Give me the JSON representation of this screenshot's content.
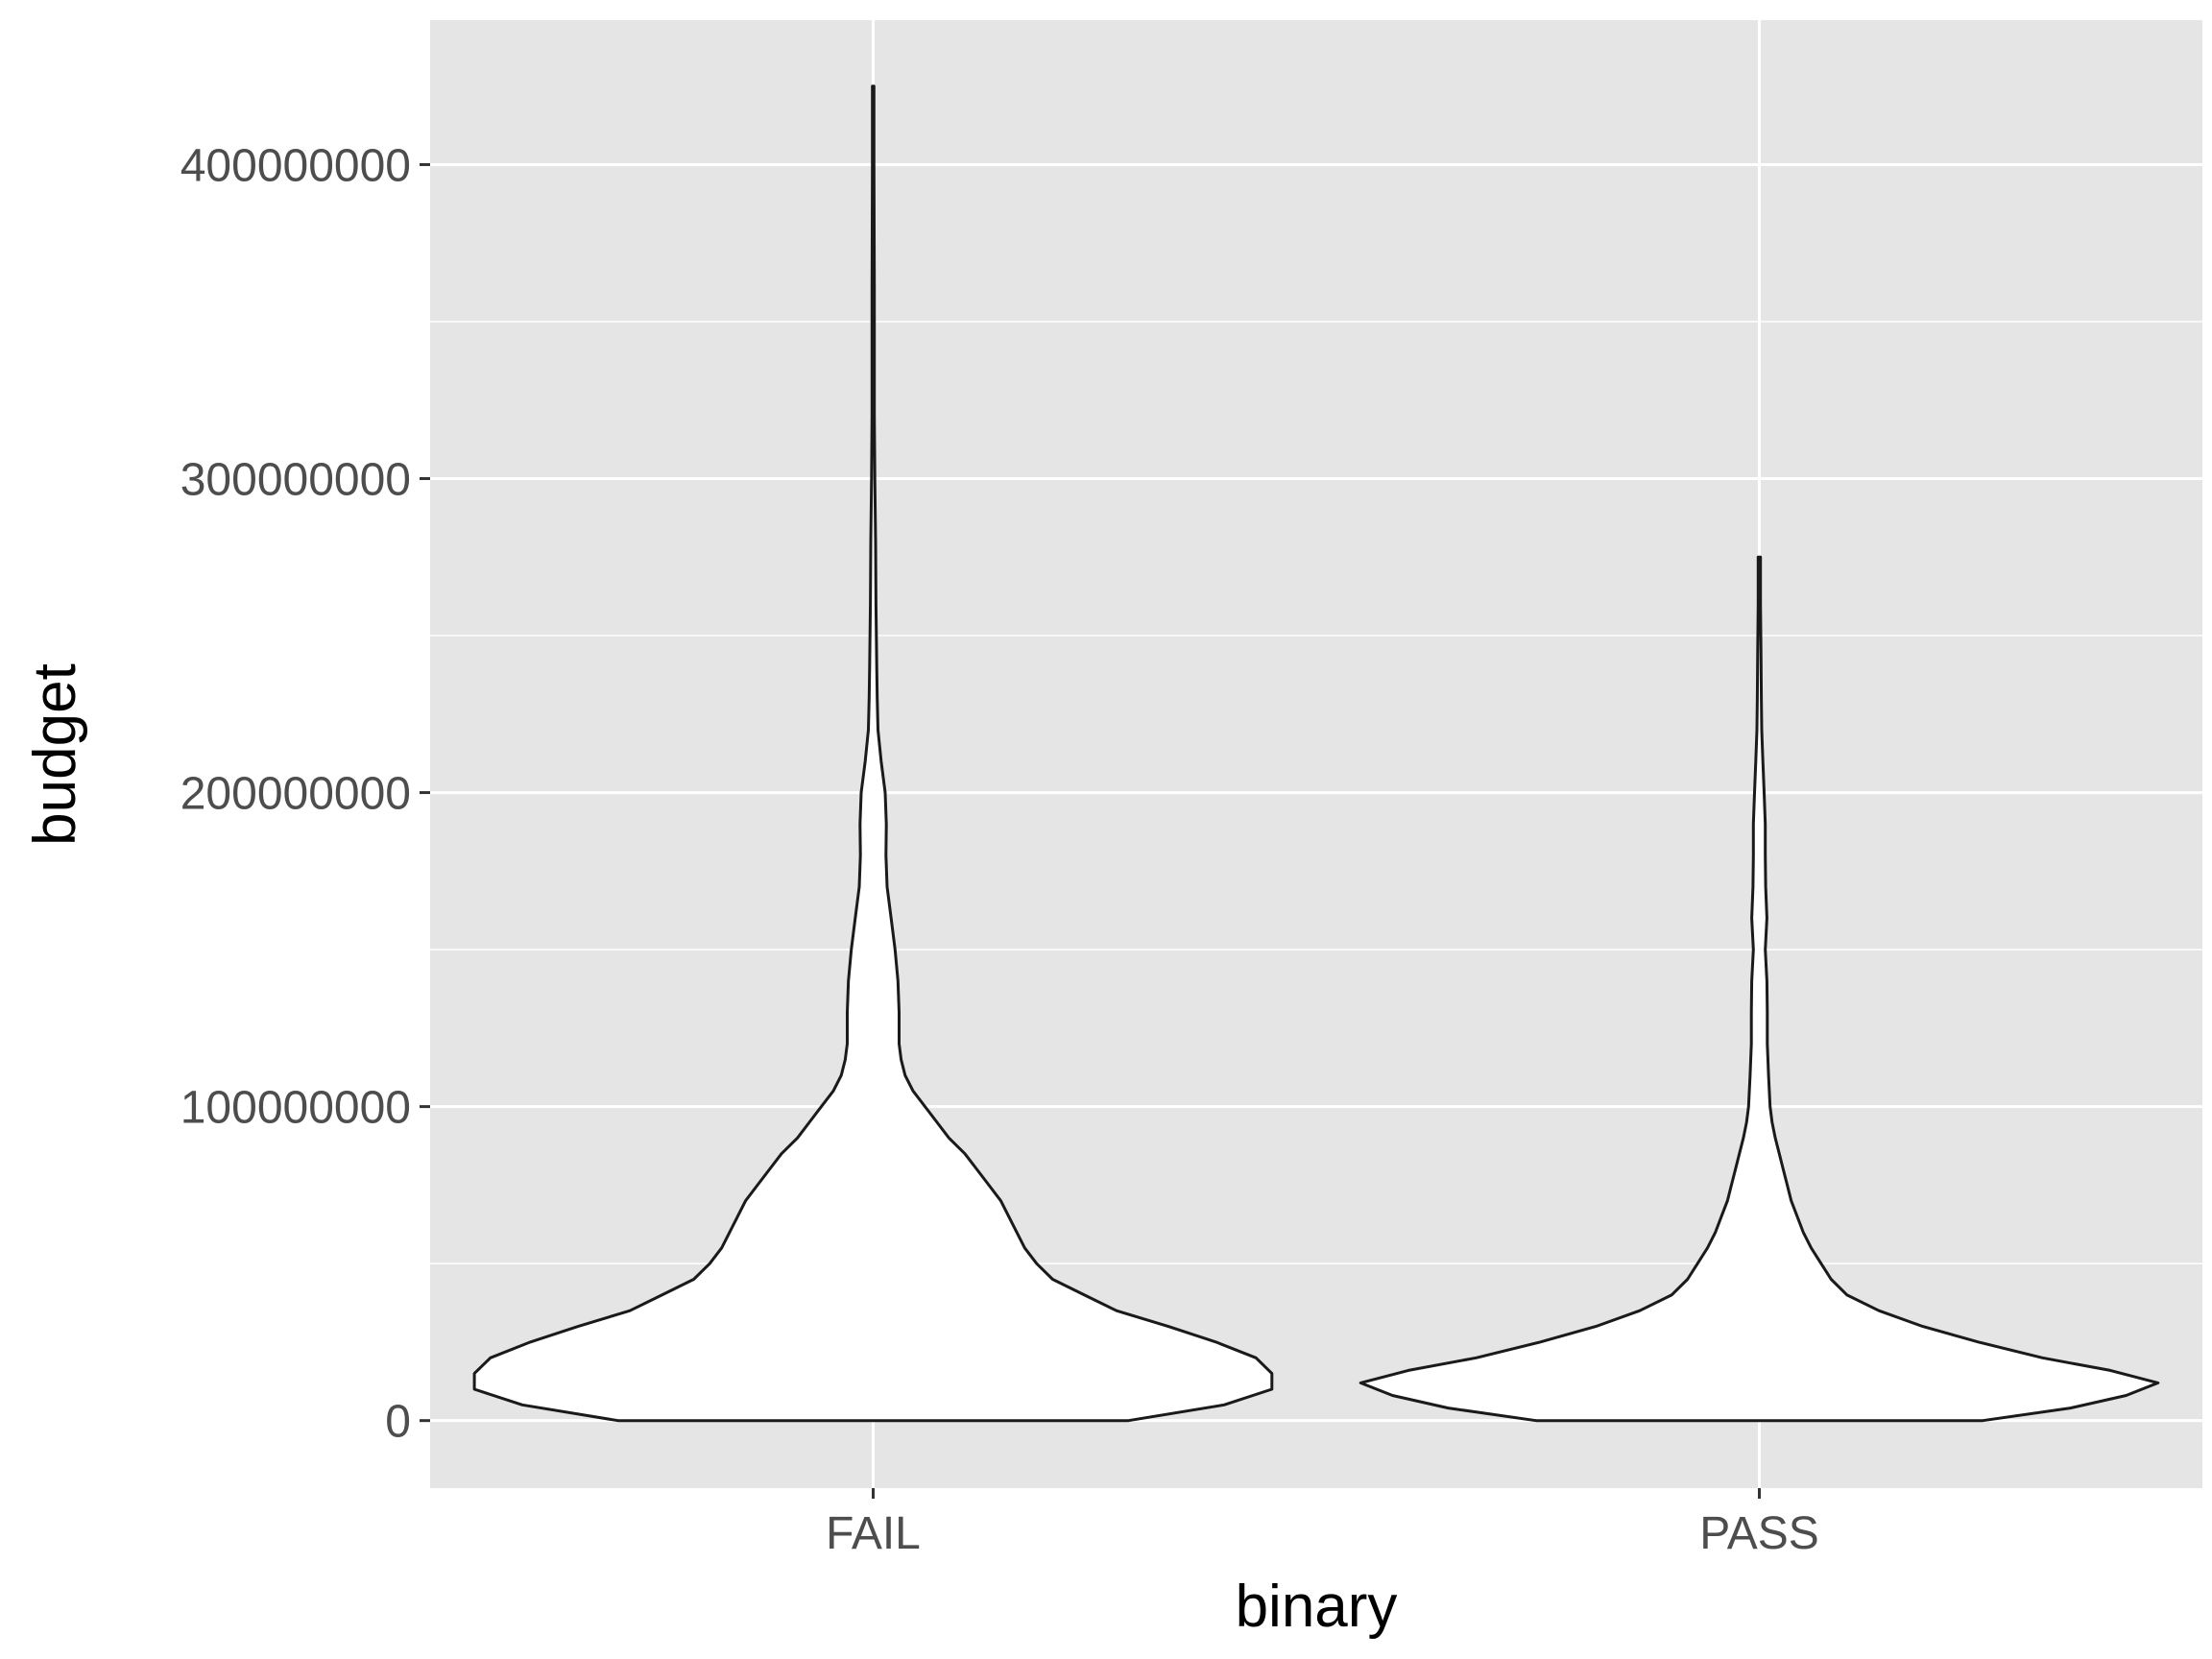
{
  "chart_data": {
    "type": "violin",
    "xlabel": "binary",
    "ylabel": "budget",
    "categories": [
      "FAIL",
      "PASS"
    ],
    "ylim": [
      -21500000,
      446000000
    ],
    "y_ticks": [
      0,
      100000000,
      200000000,
      300000000,
      400000000
    ],
    "y_tick_labels": [
      "0",
      "100000000",
      "200000000",
      "300000000",
      "400000000"
    ],
    "grid": true,
    "colors": {
      "panel": "#e5e5e5",
      "grid": "#ffffff",
      "violin_fill": "#ffffff",
      "violin_stroke": "#1a1a1a",
      "tick_text": "#4d4d4d"
    },
    "series": [
      {
        "category": "FAIL",
        "y_min": 0,
        "y_max": 425000000,
        "density_halfwidth": [
          [
            0,
            0.64
          ],
          [
            5000000,
            0.88
          ],
          [
            10000000,
            1.0
          ],
          [
            15000000,
            1.0
          ],
          [
            20000000,
            0.96
          ],
          [
            25000000,
            0.86
          ],
          [
            30000000,
            0.74
          ],
          [
            35000000,
            0.61
          ],
          [
            40000000,
            0.53
          ],
          [
            45000000,
            0.45
          ],
          [
            50000000,
            0.41
          ],
          [
            55000000,
            0.38
          ],
          [
            60000000,
            0.36
          ],
          [
            65000000,
            0.34
          ],
          [
            70000000,
            0.32
          ],
          [
            75000000,
            0.29
          ],
          [
            80000000,
            0.26
          ],
          [
            85000000,
            0.23
          ],
          [
            90000000,
            0.19
          ],
          [
            95000000,
            0.16
          ],
          [
            100000000,
            0.13
          ],
          [
            105000000,
            0.1
          ],
          [
            110000000,
            0.08
          ],
          [
            115000000,
            0.07
          ],
          [
            120000000,
            0.065
          ],
          [
            125000000,
            0.065
          ],
          [
            130000000,
            0.065
          ],
          [
            140000000,
            0.062
          ],
          [
            150000000,
            0.055
          ],
          [
            160000000,
            0.045
          ],
          [
            170000000,
            0.035
          ],
          [
            180000000,
            0.032
          ],
          [
            190000000,
            0.033
          ],
          [
            200000000,
            0.03
          ],
          [
            210000000,
            0.02
          ],
          [
            220000000,
            0.012
          ],
          [
            230000000,
            0.01
          ],
          [
            240000000,
            0.009
          ],
          [
            260000000,
            0.007
          ],
          [
            280000000,
            0.006
          ],
          [
            300000000,
            0.004
          ],
          [
            320000000,
            0.003
          ],
          [
            360000000,
            0.003
          ],
          [
            400000000,
            0.002
          ],
          [
            425000000,
            0.002
          ]
        ]
      },
      {
        "category": "PASS",
        "y_min": 0,
        "y_max": 275000000,
        "density_halfwidth": [
          [
            0,
            0.56
          ],
          [
            4000000,
            0.78
          ],
          [
            8000000,
            0.92
          ],
          [
            12000000,
            1.0
          ],
          [
            16000000,
            0.88
          ],
          [
            20000000,
            0.71
          ],
          [
            25000000,
            0.55
          ],
          [
            30000000,
            0.41
          ],
          [
            35000000,
            0.3
          ],
          [
            40000000,
            0.22
          ],
          [
            45000000,
            0.18
          ],
          [
            50000000,
            0.155
          ],
          [
            55000000,
            0.13
          ],
          [
            60000000,
            0.11
          ],
          [
            65000000,
            0.095
          ],
          [
            70000000,
            0.08
          ],
          [
            75000000,
            0.07
          ],
          [
            80000000,
            0.06
          ],
          [
            85000000,
            0.05
          ],
          [
            90000000,
            0.04
          ],
          [
            95000000,
            0.032
          ],
          [
            100000000,
            0.027
          ],
          [
            110000000,
            0.023
          ],
          [
            120000000,
            0.02
          ],
          [
            130000000,
            0.02
          ],
          [
            140000000,
            0.019
          ],
          [
            150000000,
            0.015
          ],
          [
            160000000,
            0.019
          ],
          [
            170000000,
            0.016
          ],
          [
            180000000,
            0.015
          ],
          [
            190000000,
            0.015
          ],
          [
            200000000,
            0.012
          ],
          [
            210000000,
            0.009
          ],
          [
            220000000,
            0.006
          ],
          [
            230000000,
            0.005
          ],
          [
            245000000,
            0.004
          ],
          [
            260000000,
            0.003
          ],
          [
            275000000,
            0.003
          ]
        ]
      }
    ]
  }
}
